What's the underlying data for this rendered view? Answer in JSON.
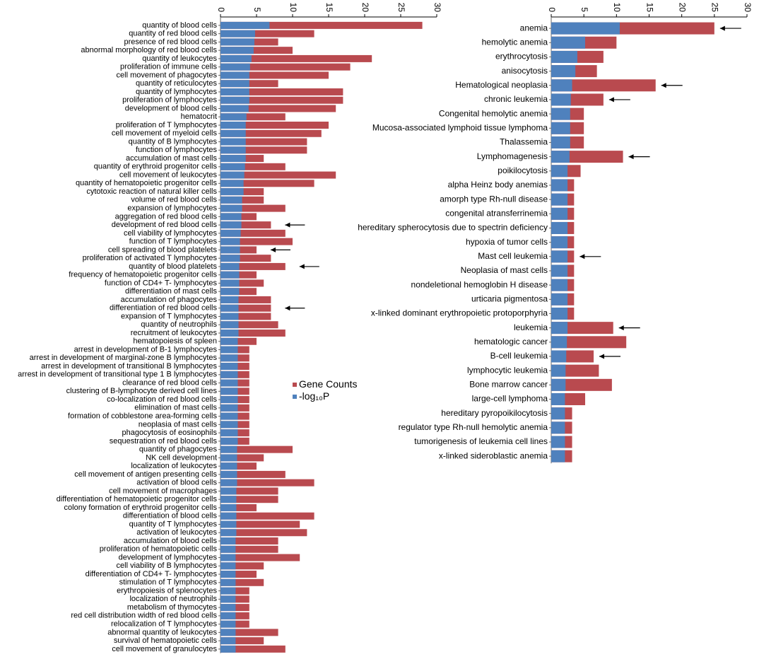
{
  "colors": {
    "gene_counts": "#B94A4F",
    "neg_log10p": "#4F81BD",
    "axis": "#000000"
  },
  "legend": {
    "gene_counts": "Gene Counts",
    "neg_log10p": "-log₁₀P"
  },
  "chart_data": [
    {
      "type": "bar",
      "orientation": "horizontal",
      "stacked_overlay": true,
      "xlim": [
        0,
        30
      ],
      "xticks": [
        "0",
        "5",
        "10",
        "15",
        "20",
        "25",
        "30"
      ],
      "tick_values": [
        0,
        5,
        10,
        15,
        20,
        25,
        30
      ],
      "categories": [
        "quantity of blood cells",
        "quantity of red blood cells",
        "presence of red blood cells",
        "abnormal morphology of red blood cells",
        "quantity of leukocytes",
        "proliferation of immune cells",
        "cell movement of phagocytes",
        "quantity of reticulocytes",
        "quantity of lymphocytes",
        "proliferation of lymphocytes",
        "development of blood cells",
        "hematocrit",
        "proliferation of T lymphocytes",
        "cell movement of myeloid cells",
        "quantity of B lymphocytes",
        "function of lymphocytes",
        "accumulation of mast cells",
        "quantity of erythroid progenitor cells",
        "cell movement of leukocytes",
        "quantity of hematopoietic progenitor cells",
        "cytotoxic reaction of natural killer cells",
        "volume of red blood cells",
        "expansion of lymphocytes",
        "aggregation of red blood cells",
        "development of red blood cells",
        "cell viability of lymphocytes",
        "function of T lymphocytes",
        "cell spreading of blood platelets",
        "proliferation of activated T lymphocytes",
        "quantity of blood platelets",
        "frequency of hematopoietic progenitor cells",
        "function of CD4+ T- lymphocytes",
        "differentiation of mast cells",
        "accumulation of phagocytes",
        "differentiation of red blood cells",
        "expansion of T lymphocytes",
        "quantity of neutrophils",
        "recruitment of leukocytes",
        "hematopoiesis of spleen",
        "arrest in development of B-1 lymphocytes",
        "arrest in development of marginal-zone B lymphocytes",
        "arrest in development of transitional B lymphocytes",
        "arrest in development of transitional type 1 B lymphocytes",
        "clearance of red blood cells",
        "clustering of B-lymphocyte derived cell lines",
        "co-localization of red blood cells",
        "elimination of mast cells",
        "formation of cobblestone area-forming cells",
        "neoplasia of mast cells",
        "phagocytosis of eosinophils",
        "sequestration of red blood cells",
        "quantity of phagocytes",
        "NK cell development",
        "localization of leukocytes",
        "cell movement of antigen presenting cells",
        "activation of blood cells",
        "cell movement of macrophages",
        "differentiation of hematopoietic progenitor cells",
        "colony formation of erythroid progenitor cells",
        "differentiation of blood cells",
        "quantity of T lymphocytes",
        "activation of leukocytes",
        "accumulation of blood cells",
        "proliferation of hematopoietic cells",
        "development of lymphocytes",
        "cell viability of B lymphocytes",
        "differentiation of CD4+ T- lymphocytes",
        "stimulation of T lymphocytes",
        "erythropoiesis of splenocytes",
        "localization of neutrophils",
        "metabolism of thymocytes",
        "red cell distribution width of red blood cells",
        "relocalization of T lymphocytes",
        "abnormal quantity of leukocytes",
        "survival of hematopoietic cells",
        "cell movement of granulocytes"
      ],
      "series": [
        {
          "name": "Gene Counts",
          "values": [
            28,
            13,
            8,
            10,
            21,
            18,
            15,
            8,
            17,
            17,
            16,
            9,
            15,
            14,
            12,
            12,
            6,
            9,
            16,
            13,
            6,
            6,
            9,
            5,
            7,
            9,
            10,
            5,
            7,
            9,
            5,
            6,
            5,
            7,
            7,
            7,
            8,
            9,
            5,
            4,
            4,
            4,
            4,
            4,
            4,
            4,
            4,
            4,
            4,
            4,
            4,
            10,
            6,
            5,
            9,
            13,
            8,
            8,
            5,
            13,
            11,
            12,
            8,
            8,
            11,
            6,
            5,
            6,
            4,
            4,
            4,
            4,
            4,
            8,
            6,
            9
          ]
        },
        {
          "name": "-log₁₀P",
          "values": [
            6.8,
            4.8,
            4.7,
            4.6,
            4.3,
            4.1,
            4.0,
            4.0,
            4.0,
            4.0,
            3.9,
            3.6,
            3.5,
            3.5,
            3.5,
            3.5,
            3.5,
            3.4,
            3.3,
            3.2,
            3.2,
            3.0,
            3.0,
            2.9,
            2.9,
            2.8,
            2.7,
            2.7,
            2.7,
            2.6,
            2.6,
            2.6,
            2.6,
            2.5,
            2.5,
            2.5,
            2.5,
            2.5,
            2.4,
            2.4,
            2.4,
            2.4,
            2.4,
            2.4,
            2.4,
            2.4,
            2.4,
            2.4,
            2.4,
            2.4,
            2.4,
            2.3,
            2.3,
            2.3,
            2.3,
            2.3,
            2.2,
            2.2,
            2.2,
            2.2,
            2.2,
            2.2,
            2.1,
            2.1,
            2.1,
            2.1,
            2.1,
            2.1,
            2.1,
            2.1,
            2.1,
            2.1,
            2.1,
            2.1,
            2.1,
            2.1
          ]
        }
      ],
      "arrows": [
        "development of red blood cells",
        "cell spreading of blood platelets",
        "quantity of blood platelets",
        "differentiation of red blood cells"
      ]
    },
    {
      "type": "bar",
      "orientation": "horizontal",
      "stacked_overlay": true,
      "xlim": [
        0,
        30
      ],
      "xticks": [
        "0",
        "5",
        "10",
        "15",
        "20",
        "25",
        "30"
      ],
      "tick_values": [
        0,
        5,
        10,
        15,
        20,
        25,
        30
      ],
      "categories": [
        "anemia",
        "hemolytic anemia",
        "erythrocytosis",
        "anisocytosis",
        "Hematological neoplasia",
        "chronic leukemia",
        "Congenital hemolytic anemia",
        "Mucosa-associated lymphoid tissue lymphoma",
        "Thalassemia",
        "Lymphomagenesis",
        "poikilocytosis",
        "alpha Heinz body anemias",
        "amorph type Rh-null disease",
        "congenital atransferrinemia",
        "hereditary spherocytosis due to spectrin deficiency",
        "hypoxia of tumor cells",
        "Mast cell leukemia",
        "Neoplasia of mast cells",
        "nondeletional hemoglobin H disease",
        "urticaria pigmentosa",
        "x-linked dominant erythropoietic protoporphyria",
        "leukemia",
        "hematologic cancer",
        "B-cell leukemia",
        "lymphocytic leukemia",
        "Bone marrow cancer",
        "large-cell lymphoma",
        "hereditary pyropoikilocytosis",
        "regulator type Rh-null hemolytic anemia",
        "tumorigenesis of leukemia cell lines",
        "x-linked sideroblastic anemia"
      ],
      "series": [
        {
          "name": "Gene Counts",
          "values": [
            25,
            10,
            8,
            7,
            16,
            8,
            5,
            5,
            5,
            11,
            4.5,
            3.5,
            3.5,
            3.5,
            3.5,
            3.5,
            3.5,
            3.5,
            3.5,
            3.5,
            3.5,
            9.5,
            11.5,
            6.5,
            7.3,
            9.3,
            5.2,
            3.2,
            3.2,
            3.2,
            3.2
          ]
        },
        {
          "name": "-log₁₀P",
          "values": [
            10.5,
            5.2,
            4,
            3.7,
            3.2,
            3,
            2.9,
            2.9,
            2.9,
            2.8,
            2.5,
            2.5,
            2.5,
            2.5,
            2.5,
            2.5,
            2.5,
            2.5,
            2.5,
            2.5,
            2.5,
            2.5,
            2.4,
            2.3,
            2.2,
            2.2,
            2.1,
            2.1,
            2.1,
            2.1,
            2.1
          ]
        }
      ],
      "arrows": [
        "anemia",
        "Hematological neoplasia",
        "chronic leukemia",
        "Lymphomagenesis",
        "Mast cell leukemia",
        "leukemia",
        "B-cell leukemia"
      ]
    }
  ]
}
